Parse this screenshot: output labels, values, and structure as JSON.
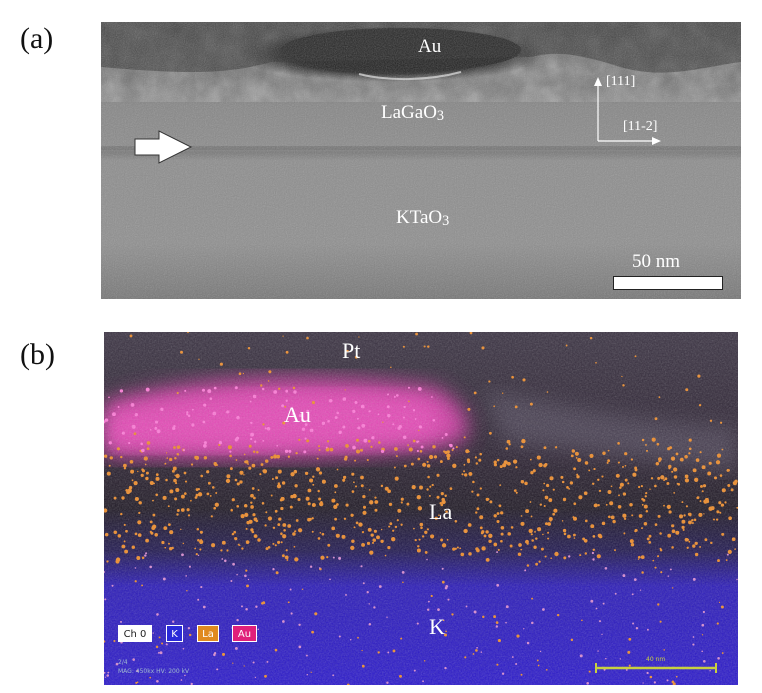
{
  "panel_a": {
    "label": "(a)",
    "layers": {
      "top": "Au",
      "middle": "LaGaO",
      "middle_sub": "3",
      "bottom": "KTaO",
      "bottom_sub": "3"
    },
    "axes": {
      "vertical": "[111]",
      "horizontal": "[11-2]"
    },
    "scale_bar": "50 nm"
  },
  "panel_b": {
    "label": "(b)",
    "elements": {
      "pt": "Pt",
      "au": "Au",
      "la": "La",
      "k": "K"
    },
    "legend": [
      {
        "label": "Ch 0",
        "bg": "#ffffff",
        "fg": "#222222"
      },
      {
        "label": "K",
        "bg": "#2a2ad8",
        "fg": "#ffffff"
      },
      {
        "label": "La",
        "bg": "#e08a20",
        "fg": "#ffffff"
      },
      {
        "label": "Au",
        "bg": "#e0207a",
        "fg": "#ffffff"
      }
    ],
    "scale_bar": "40 nm",
    "corner_info": {
      "line1": "2/4",
      "line2": "MAG: 450kx   HV: 200 kV"
    }
  },
  "colors": {
    "au_map": "#e83fb6",
    "la_map": "#f08c28",
    "k_map": "#2a1ad0"
  }
}
